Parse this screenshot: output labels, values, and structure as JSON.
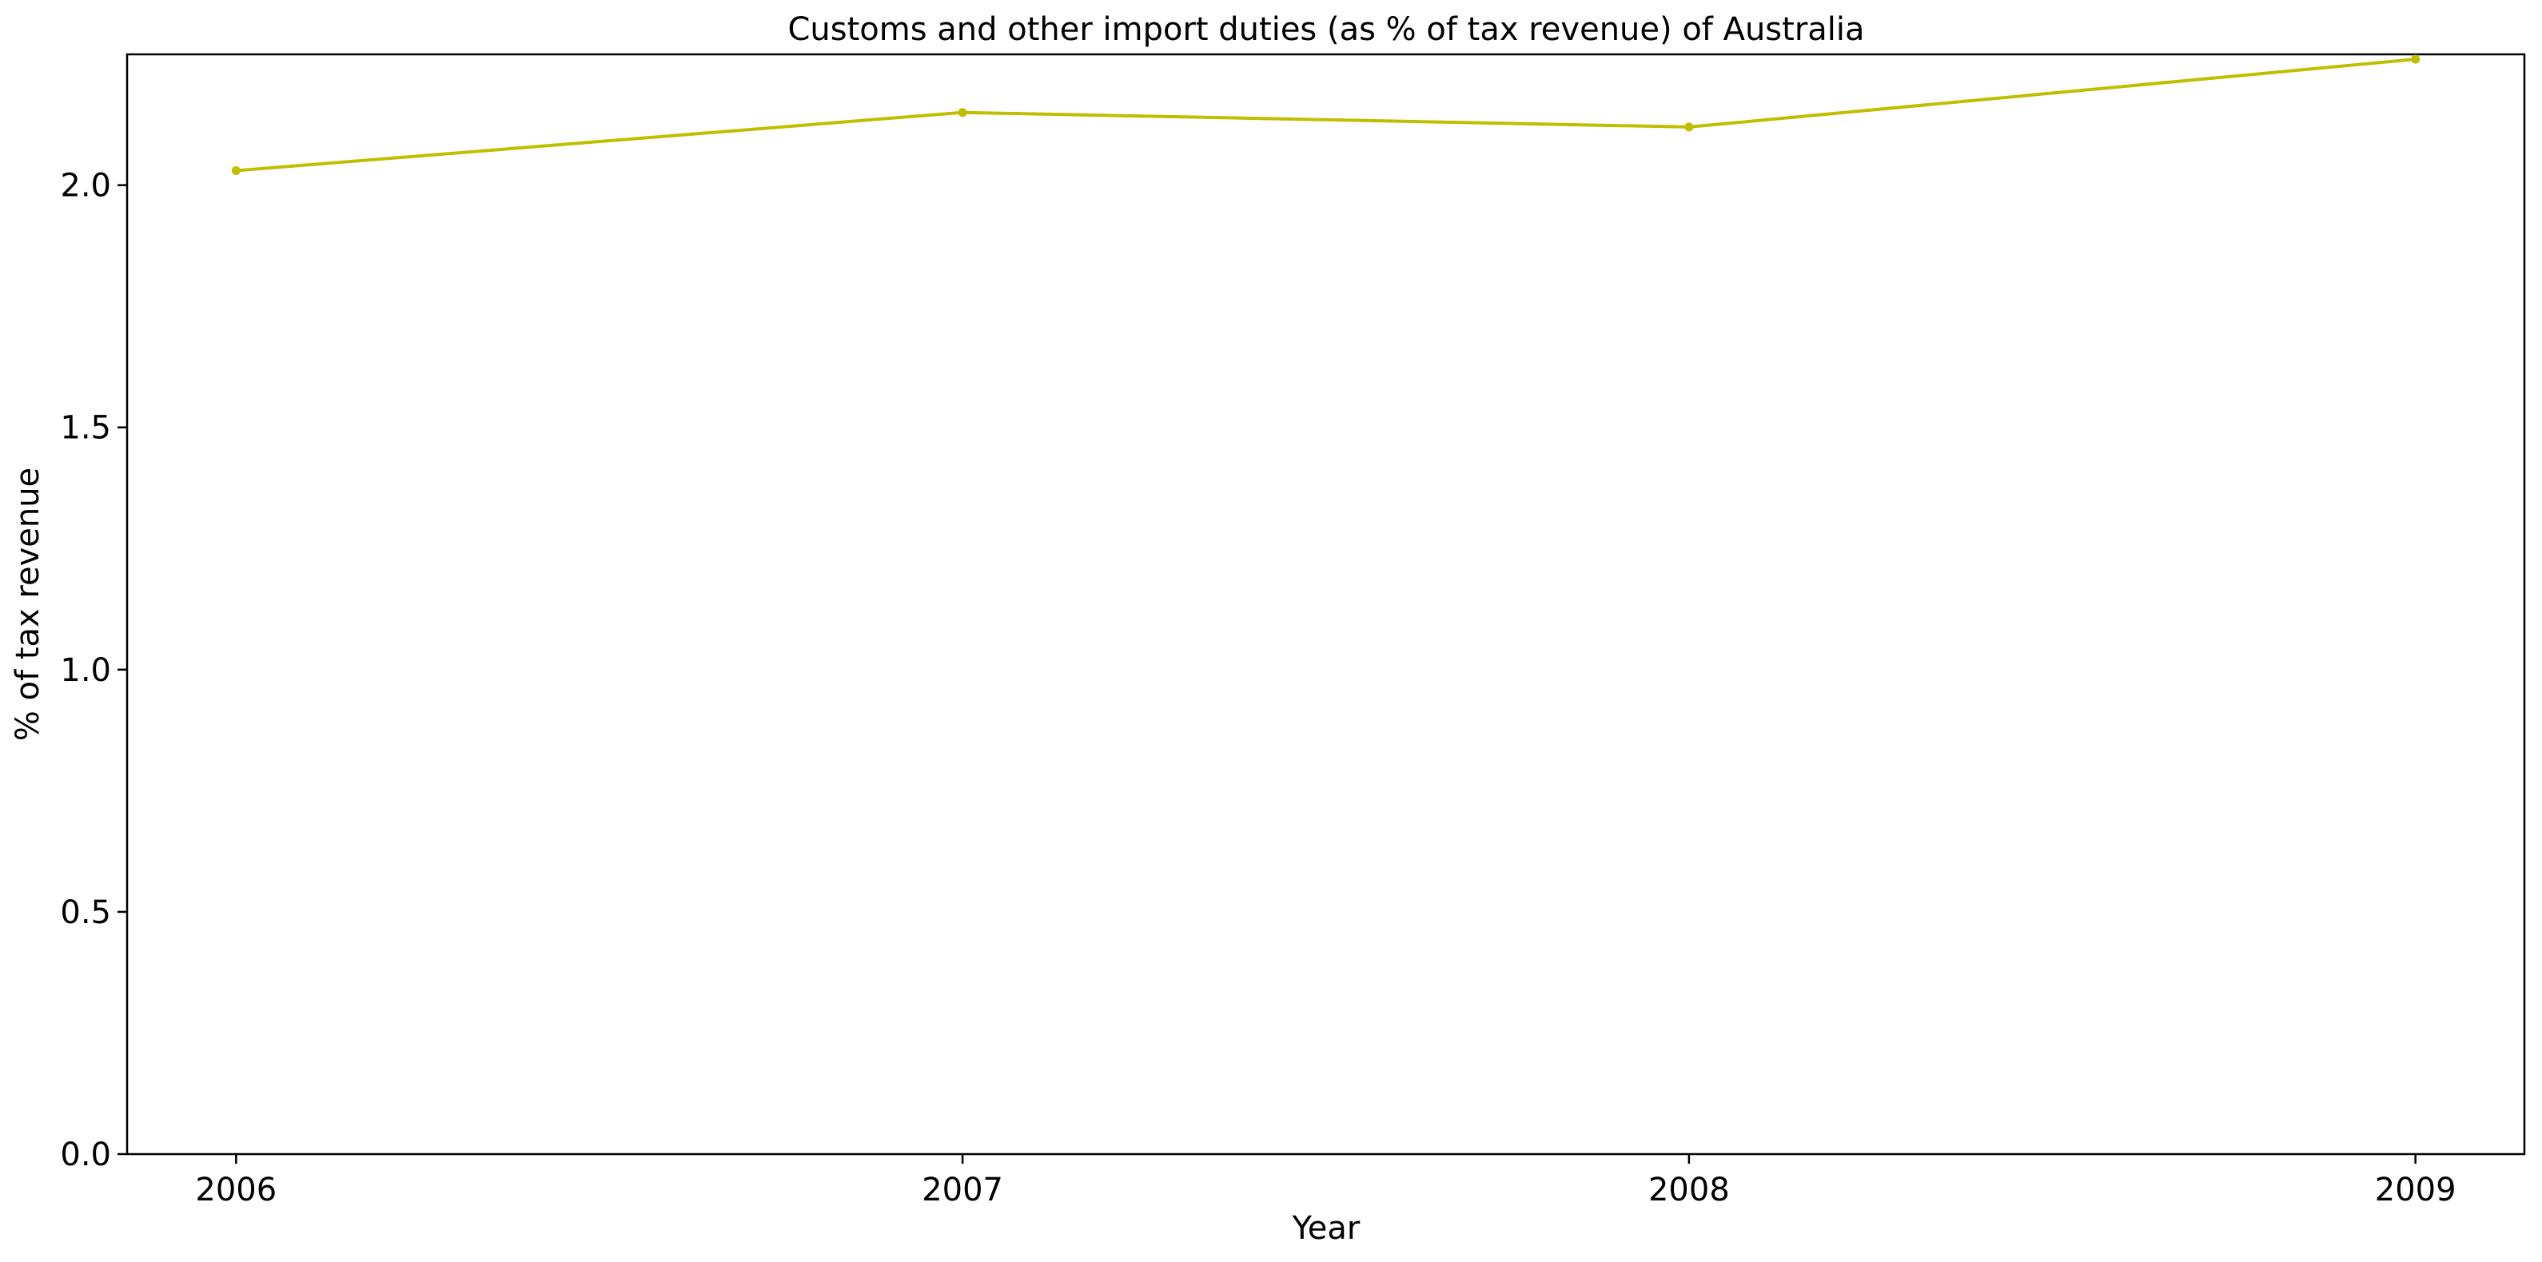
{
  "chart_data": {
    "type": "line",
    "title": "Customs and other import duties (as % of tax revenue) of Australia",
    "xlabel": "Year",
    "ylabel": "% of tax revenue",
    "categories": [
      "2006",
      "2007",
      "2008",
      "2009"
    ],
    "series": [
      {
        "values": [
          2.03,
          2.15,
          2.12,
          2.26
        ],
        "color": "#bfbf00"
      }
    ],
    "ylim": [
      0.0,
      2.27
    ],
    "xlim": [
      2005.85,
      2009.15
    ],
    "yticks": [
      "0.0",
      "0.5",
      "1.0",
      "1.5",
      "2.0"
    ],
    "grid": false,
    "legend": "none"
  }
}
